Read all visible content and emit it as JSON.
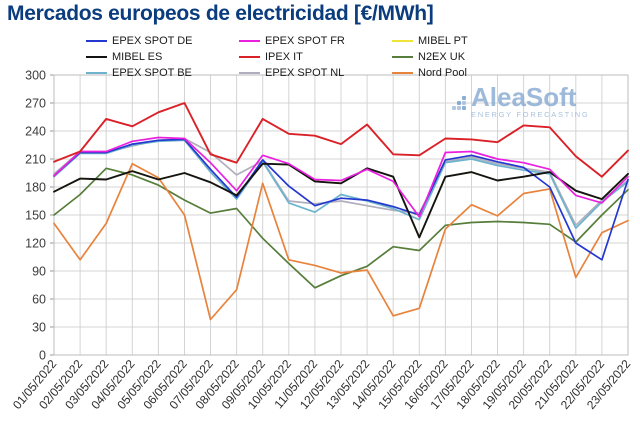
{
  "title": {
    "text": "Mercados europeos de electricidad [€/MWh]",
    "color": "#0a3c7e"
  },
  "watermark": {
    "brand": "AleaSoft",
    "tagline": "ENERGY FORECASTING"
  },
  "axis": {
    "grid_color": "#d4d4d4",
    "border_color": "#bdbdbd",
    "tick_color": "#3c3c3c",
    "x_label_rotation_deg": -50
  },
  "chart_data": {
    "type": "line",
    "title": "Mercados europeos de electricidad [€/MWh]",
    "xlabel": "",
    "ylabel": "",
    "ylim": [
      0,
      300
    ],
    "ytick_step": 30,
    "grid": true,
    "legend_position": "top",
    "x": [
      "01/05/2022",
      "02/05/2022",
      "03/05/2022",
      "04/05/2022",
      "05/05/2022",
      "06/05/2022",
      "07/05/2022",
      "08/05/2022",
      "09/05/2022",
      "10/05/2022",
      "11/05/2022",
      "12/05/2022",
      "13/05/2022",
      "14/05/2022",
      "15/05/2022",
      "16/05/2022",
      "17/05/2022",
      "18/05/2022",
      "19/05/2022",
      "20/05/2022",
      "21/05/2022",
      "22/05/2022",
      "23/05/2022"
    ],
    "series": [
      {
        "name": "EPEX SPOT DE",
        "color": "#2438cf",
        "values": [
          192,
          217,
          217,
          226,
          230,
          231,
          199,
          169,
          209,
          181,
          160,
          168,
          166,
          159,
          150,
          209,
          214,
          207,
          201,
          180,
          120,
          102,
          188
        ]
      },
      {
        "name": "MIBEL ES",
        "color": "#141414",
        "values": [
          175,
          189,
          188,
          197,
          188,
          195,
          185,
          171,
          205,
          204,
          186,
          184,
          200,
          191,
          126,
          191,
          196,
          187,
          191,
          196,
          176,
          167,
          194
        ]
      },
      {
        "name": "EPEX SPOT BE",
        "color": "#6db3cd",
        "values": [
          191,
          216,
          216,
          225,
          229,
          230,
          196,
          167,
          207,
          163,
          153,
          172,
          165,
          157,
          145,
          206,
          210,
          203,
          198,
          194,
          136,
          164,
          186
        ]
      },
      {
        "name": "EPEX SPOT FR",
        "color": "#ea1fe0",
        "values": [
          192,
          218,
          218,
          229,
          233,
          232,
          206,
          176,
          214,
          205,
          188,
          187,
          199,
          186,
          148,
          217,
          218,
          210,
          206,
          199,
          171,
          163,
          191
        ]
      },
      {
        "name": "IPEX IT",
        "color": "#da2128",
        "values": [
          207,
          218,
          253,
          245,
          260,
          270,
          215,
          206,
          253,
          237,
          235,
          226,
          247,
          215,
          214,
          232,
          231,
          228,
          246,
          244,
          213,
          191,
          219
        ]
      },
      {
        "name": "EPEX SPOT NL",
        "color": "#b0aebc",
        "values": [
          194,
          218,
          217,
          224,
          230,
          232,
          217,
          193,
          208,
          165,
          162,
          165,
          160,
          155,
          152,
          207,
          212,
          205,
          200,
          196,
          139,
          166,
          187
        ]
      },
      {
        "name": "MIBEL PT",
        "color": "#f2e33b",
        "values": [
          175,
          189,
          188,
          197,
          188,
          195,
          185,
          171,
          205,
          204,
          186,
          184,
          200,
          191,
          126,
          191,
          196,
          187,
          191,
          196,
          176,
          167,
          194
        ]
      },
      {
        "name": "N2EX UK",
        "color": "#567d3a",
        "values": [
          150,
          172,
          200,
          193,
          182,
          166,
          152,
          157,
          125,
          98,
          72,
          85,
          95,
          116,
          112,
          139,
          142,
          143,
          142,
          140,
          121,
          150,
          177
        ]
      },
      {
        "name": "Nord Pool",
        "color": "#e8833c",
        "values": [
          141,
          102,
          141,
          205,
          190,
          150,
          38,
          70,
          184,
          102,
          96,
          88,
          91,
          42,
          50,
          135,
          161,
          149,
          173,
          178,
          83,
          131,
          144
        ]
      }
    ]
  }
}
